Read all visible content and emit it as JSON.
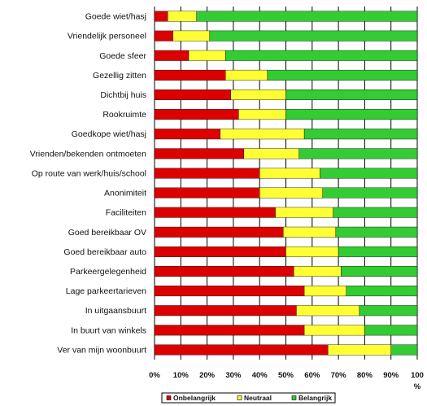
{
  "chart_data": {
    "type": "bar",
    "orientation": "horizontal",
    "stacked": true,
    "percent": true,
    "categories": [
      "Goede wiet/hasj",
      "Vriendelijk personeel",
      "Goede sfeer",
      "Gezellig zitten",
      "Dichtbij huis",
      "Rookruimte",
      "Goedkope wiet/hasj",
      "Vrienden/bekenden ontmoeten",
      "Op route van werk/huis/school",
      "Anonimiteit",
      "Faciliteiten",
      "Goed bereikbaar OV",
      "Goed bereikbaar auto",
      "Parkeergelegenheid",
      "Lage parkeertarieven",
      "In uitgaansbuurt",
      "In buurt van winkels",
      "Ver van mijn woonbuurt"
    ],
    "series": [
      {
        "name": "Onbelangrijk",
        "color": "#dd0000",
        "values": [
          5,
          7,
          13,
          27,
          29,
          32,
          25,
          34,
          40,
          40,
          46,
          49,
          50,
          53,
          57,
          54,
          57,
          66
        ]
      },
      {
        "name": "Neutraal",
        "color": "#ffff33",
        "values": [
          11,
          14,
          14,
          16,
          21,
          18,
          32,
          21,
          23,
          24,
          22,
          20,
          20,
          18,
          16,
          24,
          23,
          24
        ]
      },
      {
        "name": "Belangrijk",
        "color": "#33cc33",
        "values": [
          84,
          79,
          73,
          57,
          50,
          50,
          43,
          45,
          37,
          36,
          32,
          31,
          30,
          29,
          27,
          22,
          20,
          10
        ]
      }
    ],
    "xlim": [
      0,
      100
    ],
    "xticks": [
      "0%",
      "10%",
      "20%",
      "30%",
      "40%",
      "50%",
      "60%",
      "70%",
      "80%",
      "90%",
      "100"
    ],
    "x_unit": "%",
    "grid": "vertical",
    "legend": "bottom"
  }
}
